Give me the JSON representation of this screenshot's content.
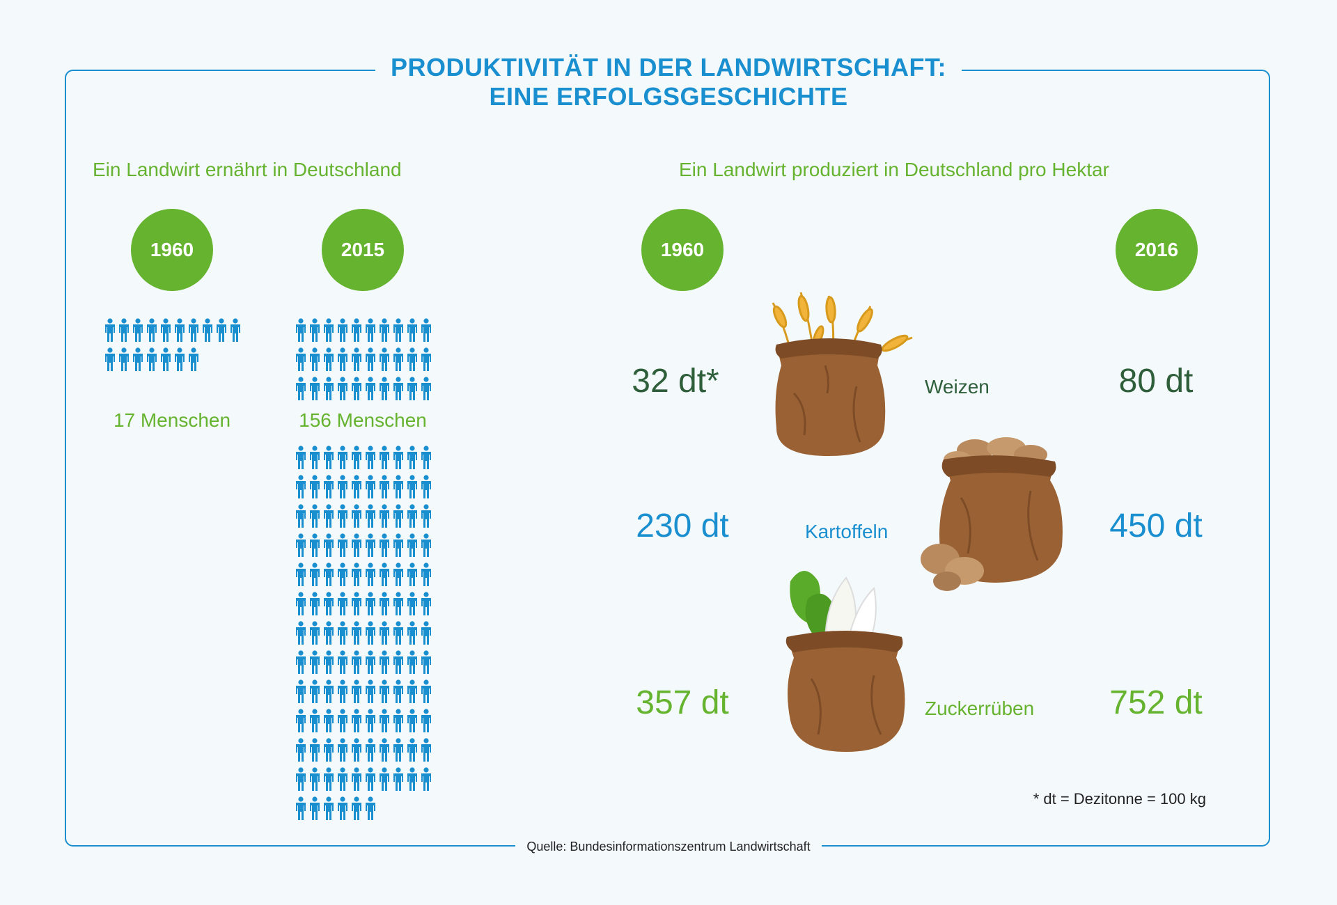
{
  "title_line1": "PRODUKTIVITÄT IN DER LANDWIRTSCHAFT:",
  "title_line2": "EINE ERFOLGSGESCHICHTE",
  "source": "Quelle: Bundesinformationszentrum Landwirtschaft",
  "colors": {
    "blue": "#1a8fd0",
    "green": "#65b32e",
    "dark_green": "#2e5e3a",
    "sack_brown": "#9a6234"
  },
  "icons": [
    "person-icon",
    "wheat-sack-icon",
    "potato-sack-icon",
    "sugarbeet-sack-icon"
  ],
  "left": {
    "subtitle": "Ein Landwirt ernährt in Deutschland",
    "year_a": "1960",
    "year_b": "2015",
    "label_a": "17 Menschen",
    "label_b": "156 Menschen"
  },
  "right": {
    "subtitle": "Ein Landwirt produziert in Deutschland pro Hektar",
    "year_a": "1960",
    "year_b": "2016",
    "footnote": "* dt = Dezitonne = 100 kg"
  },
  "chart_data": [
    {
      "type": "pictogram",
      "title": "Ein Landwirt ernährt in Deutschland",
      "categories": [
        "1960",
        "2015"
      ],
      "values": [
        17,
        156
      ],
      "unit": "Menschen"
    },
    {
      "type": "table",
      "title": "Ein Landwirt produziert in Deutschland pro Hektar",
      "columns": [
        "1960",
        "2016"
      ],
      "rows": [
        {
          "crop": "Weizen",
          "v1960": 32,
          "v2016": 80,
          "label_1960": "32 dt*",
          "label_2016": "80 dt"
        },
        {
          "crop": "Kartoffeln",
          "v1960": 230,
          "v2016": 450,
          "label_1960": "230 dt",
          "label_2016": "450 dt"
        },
        {
          "crop": "Zuckerrüben",
          "v1960": 357,
          "v2016": 752,
          "label_1960": "357 dt",
          "label_2016": "752 dt"
        }
      ],
      "unit": "dt"
    }
  ]
}
